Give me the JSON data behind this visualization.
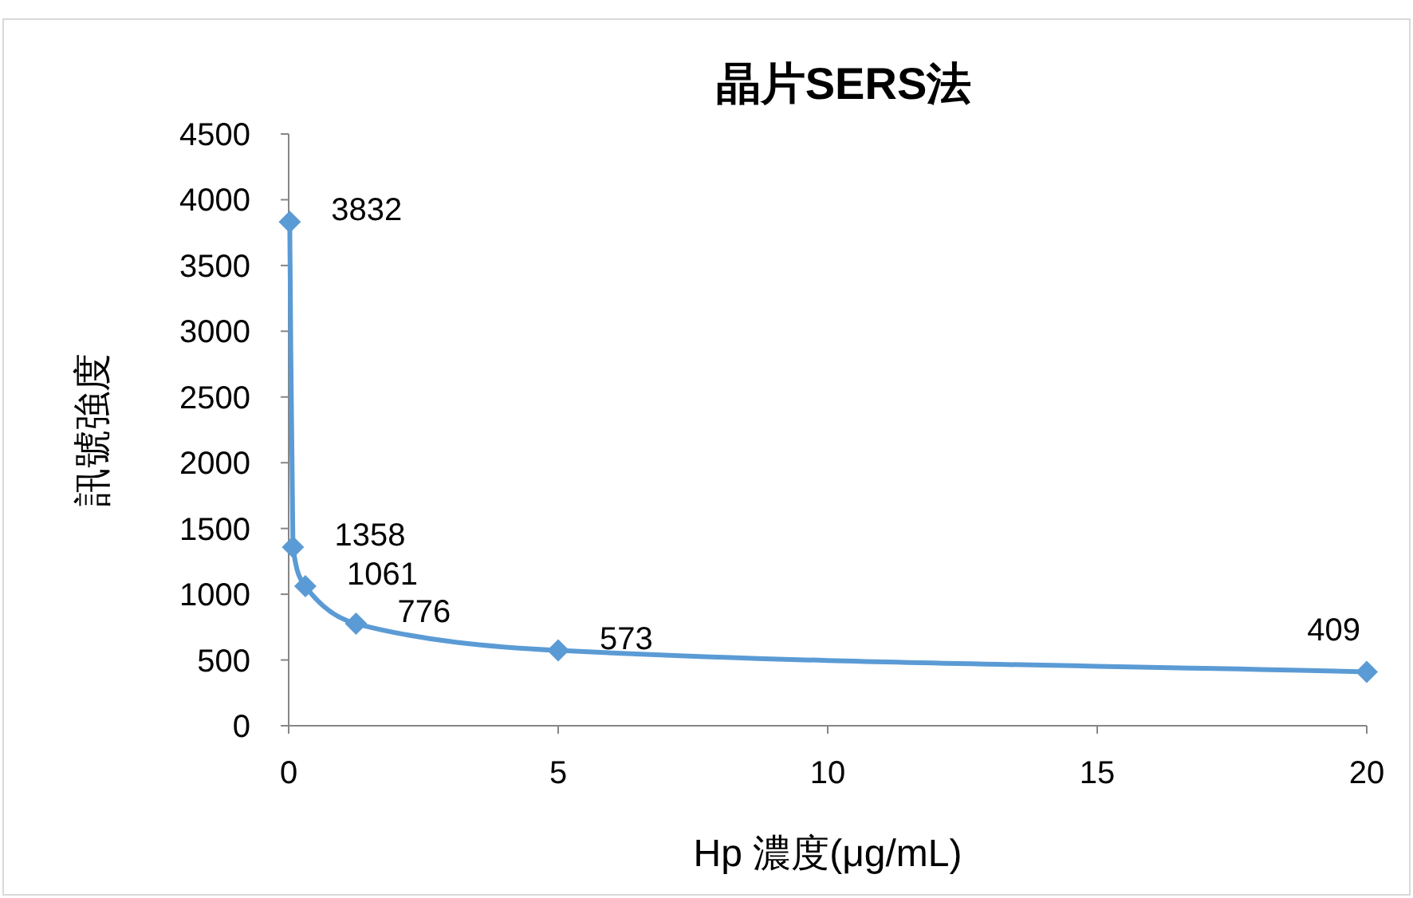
{
  "chart_data": {
    "type": "line",
    "title": "晶片SERS法",
    "xlabel": "Hp 濃度(μg/mL)",
    "ylabel": "訊號強度",
    "x": [
      0.02,
      0.08,
      0.31,
      1.25,
      5,
      20
    ],
    "series": [
      {
        "color": "#5b9bd5",
        "values": [
          3832,
          1358,
          1061,
          776,
          573,
          409
        ]
      }
    ],
    "xlim": [
      0,
      20
    ],
    "xticks": [
      0,
      5,
      10,
      15,
      20
    ],
    "ylim": [
      0,
      4500
    ],
    "yticks": [
      0,
      500,
      1000,
      1500,
      2000,
      2500,
      3000,
      3500,
      4000,
      4500
    ],
    "data_labels": true,
    "marker": "diamond",
    "line_style": "solid",
    "grid": false
  }
}
